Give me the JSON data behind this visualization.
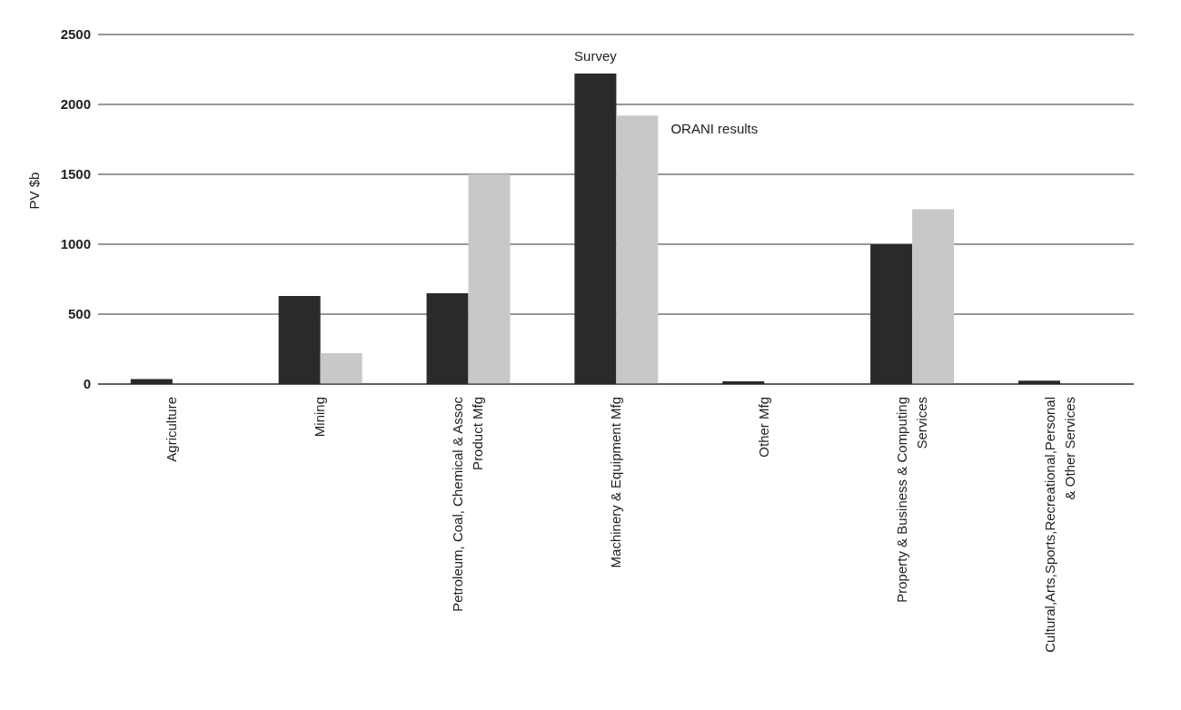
{
  "chart_data": {
    "type": "bar",
    "ylabel": "PV $b",
    "categories": [
      "Agriculture",
      "Mining",
      "Petroleum, Coal, Chemical & Assoc Product Mfg",
      "Machinery & Equipment Mfg",
      "Other Mfg",
      "Property & Business & Computing Services",
      "Cultural,Arts,Sports,Recreational,Personal & Other Services"
    ],
    "series": [
      {
        "name": "Survey",
        "color": "#2a2a2a",
        "values": [
          35,
          630,
          650,
          2220,
          20,
          1000,
          25
        ]
      },
      {
        "name": "ORANI results",
        "color": "#c8c8c8",
        "values": [
          null,
          220,
          1500,
          1920,
          null,
          1250,
          null
        ]
      }
    ],
    "ylim": [
      0,
      2500
    ],
    "yticks": [
      0,
      500,
      1000,
      1500,
      2000,
      2500
    ],
    "grid": "y",
    "legend": false
  }
}
